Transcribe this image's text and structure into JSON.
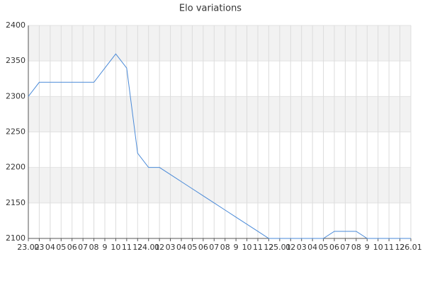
{
  "chart_data": {
    "type": "line",
    "title": "Elo variations",
    "categories": [
      "23.02",
      "03",
      "04",
      "05",
      "06",
      "07",
      "08",
      "9",
      "10",
      "11",
      "12",
      "24.01",
      "02",
      "03",
      "04",
      "05",
      "06",
      "07",
      "08",
      "9",
      "10",
      "11",
      "12",
      "25.01",
      "02",
      "03",
      "04",
      "05",
      "06",
      "07",
      "08",
      "9",
      "10",
      "11",
      "12",
      "26.01"
    ],
    "values": [
      2300,
      2320,
      2320,
      2320,
      2320,
      2320,
      2320,
      2340,
      2360,
      2340,
      2220,
      2200,
      2200,
      2190,
      2180,
      2170,
      2160,
      2150,
      2140,
      2130,
      2120,
      2110,
      2100,
      2100,
      2100,
      2100,
      2100,
      2100,
      2110,
      2110,
      2110,
      2100,
      2100,
      2100,
      2100,
      2100
    ],
    "color": "#4a8ad8",
    "ylim": [
      2100,
      2400
    ],
    "yticks": [
      2100,
      2150,
      2200,
      2250,
      2300,
      2350,
      2400
    ],
    "grid": true
  }
}
